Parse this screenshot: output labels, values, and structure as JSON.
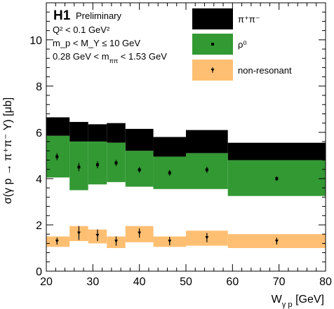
{
  "chart_data": {
    "type": "band",
    "xlabel": "W_{γ p} [GeV]",
    "ylabel": "σ(γ p → π⁺π⁻ Y) [μb]",
    "xlim": [
      20,
      80
    ],
    "ylim": [
      0,
      11.6
    ],
    "x_ticks": [
      20,
      30,
      40,
      50,
      60,
      70,
      80
    ],
    "y_ticks": [
      0,
      2,
      4,
      6,
      8,
      10
    ],
    "annotations": {
      "title": "H1",
      "subtitle": "Preliminary",
      "lines": [
        "Q² < 0.1 GeV²",
        "m_p < M_Y ≤ 10 GeV",
        "0.28 GeV < m_{ππ} < 1.53 GeV"
      ]
    },
    "legend_position": "top-right",
    "series": [
      {
        "name": "π⁺π⁻",
        "color": "#000000",
        "bins": [
          {
            "x0": 20,
            "x1": 25,
            "lo": 5.85,
            "hi": 6.65
          },
          {
            "x0": 25,
            "x1": 29,
            "lo": 5.6,
            "hi": 6.45
          },
          {
            "x0": 29,
            "x1": 33,
            "lo": 5.6,
            "hi": 6.35
          },
          {
            "x0": 33,
            "x1": 37,
            "lo": 5.55,
            "hi": 6.4
          },
          {
            "x0": 37,
            "x1": 43,
            "lo": 5.2,
            "hi": 6.15
          },
          {
            "x0": 43,
            "x1": 50,
            "lo": 4.95,
            "hi": 5.8
          },
          {
            "x0": 50,
            "x1": 59,
            "lo": 5.1,
            "hi": 6.1
          },
          {
            "x0": 59,
            "x1": 80,
            "lo": 4.8,
            "hi": 5.55
          }
        ]
      },
      {
        "name": "ρ⁰",
        "color": "#339933",
        "bins": [
          {
            "x0": 20,
            "x1": 25,
            "lo": 4.05,
            "hi": 5.85,
            "value": 4.95,
            "err": 0.15
          },
          {
            "x0": 25,
            "x1": 29,
            "lo": 3.5,
            "hi": 5.6,
            "value": 4.5,
            "err": 0.18
          },
          {
            "x0": 29,
            "x1": 33,
            "lo": 3.75,
            "hi": 5.6,
            "value": 4.6,
            "err": 0.15
          },
          {
            "x0": 33,
            "x1": 37,
            "lo": 3.85,
            "hi": 5.55,
            "value": 4.68,
            "err": 0.13
          },
          {
            "x0": 37,
            "x1": 43,
            "lo": 3.65,
            "hi": 5.2,
            "value": 4.38,
            "err": 0.12
          },
          {
            "x0": 43,
            "x1": 50,
            "lo": 3.55,
            "hi": 4.95,
            "value": 4.25,
            "err": 0.12
          },
          {
            "x0": 50,
            "x1": 59,
            "lo": 3.55,
            "hi": 5.1,
            "value": 4.38,
            "err": 0.13
          },
          {
            "x0": 59,
            "x1": 80,
            "lo": 3.25,
            "hi": 4.8,
            "value": 4.0,
            "err": 0.1
          }
        ],
        "points_x": [
          22.3,
          27.0,
          31.0,
          35.0,
          40.0,
          46.5,
          54.5,
          69.5
        ]
      },
      {
        "name": "non-resonant",
        "color": "#ffbf73",
        "bins": [
          {
            "x0": 20,
            "x1": 25,
            "lo": 1.05,
            "hi": 1.5,
            "value": 1.3,
            "err": 0.15
          },
          {
            "x0": 25,
            "x1": 29,
            "lo": 1.3,
            "hi": 1.95,
            "value": 1.65,
            "err": 0.3
          },
          {
            "x0": 29,
            "x1": 33,
            "lo": 1.2,
            "hi": 1.8,
            "value": 1.55,
            "err": 0.25
          },
          {
            "x0": 33,
            "x1": 37,
            "lo": 1.0,
            "hi": 1.5,
            "value": 1.3,
            "err": 0.2
          },
          {
            "x0": 37,
            "x1": 43,
            "lo": 1.25,
            "hi": 1.95,
            "value": 1.65,
            "err": 0.2
          },
          {
            "x0": 43,
            "x1": 50,
            "lo": 1.05,
            "hi": 1.5,
            "value": 1.3,
            "err": 0.18
          },
          {
            "x0": 50,
            "x1": 59,
            "lo": 1.1,
            "hi": 1.75,
            "value": 1.45,
            "err": 0.2
          },
          {
            "x0": 59,
            "x1": 80,
            "lo": 1.0,
            "hi": 1.6,
            "value": 1.3,
            "err": 0.15
          }
        ],
        "points_x": [
          22.3,
          27.0,
          31.0,
          35.0,
          40.0,
          46.5,
          54.5,
          69.5
        ]
      }
    ]
  }
}
